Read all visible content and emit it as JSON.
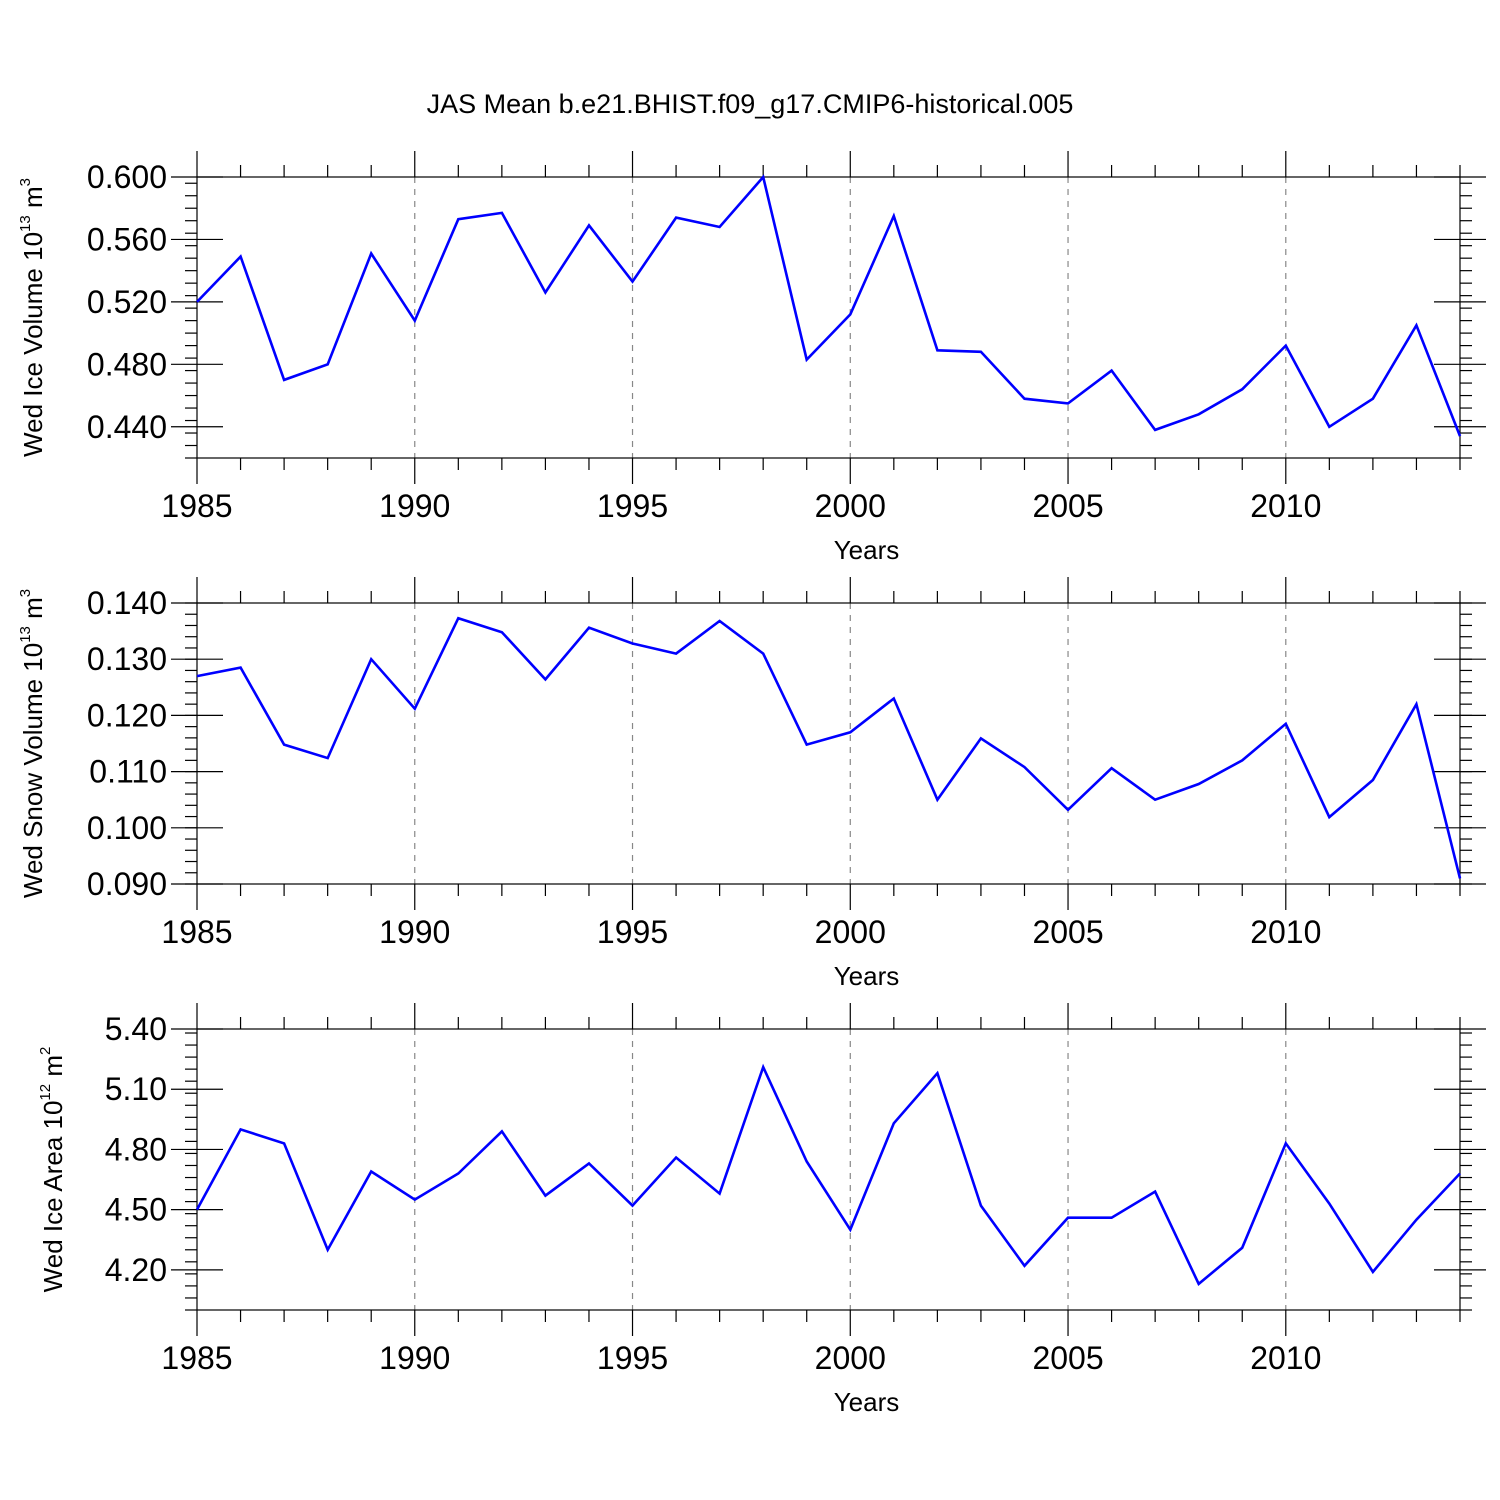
{
  "figure": {
    "title": "JAS Mean b.e21.BHIST.f09_g17.CMIP6-historical.005"
  },
  "chart_data": [
    {
      "type": "line",
      "ylabel": {
        "base": "Wed Ice Volume 10",
        "exp": "13",
        "unit": " m",
        "unit_exp": "3"
      },
      "xlabel": "Years",
      "xlim": [
        1985,
        2014
      ],
      "ylim": [
        0.42,
        0.6
      ],
      "x_ticks": [
        1985,
        1990,
        1995,
        2000,
        2005,
        2010
      ],
      "x_tick_labels": [
        "1985",
        "1990",
        "1995",
        "2000",
        "2005",
        "2010"
      ],
      "y_ticks": [
        0.44,
        0.48,
        0.52,
        0.56,
        0.6
      ],
      "y_tick_labels": [
        "0.440",
        "0.480",
        "0.520",
        "0.560",
        "0.600"
      ],
      "grid": "x-dashed",
      "color": "#0000ff",
      "series": [
        {
          "x": [
            1985,
            1986,
            1987,
            1988,
            1989,
            1990,
            1991,
            1992,
            1993,
            1994,
            1995,
            1996,
            1997,
            1998,
            1999,
            2000,
            2001,
            2002,
            2003,
            2004,
            2005,
            2006,
            2007,
            2008,
            2009,
            2010,
            2011,
            2012,
            2013,
            2014
          ],
          "values": [
            0.52,
            0.549,
            0.47,
            0.48,
            0.551,
            0.508,
            0.573,
            0.577,
            0.526,
            0.569,
            0.533,
            0.574,
            0.568,
            0.6,
            0.483,
            0.512,
            0.575,
            0.489,
            0.488,
            0.458,
            0.455,
            0.476,
            0.438,
            0.448,
            0.464,
            0.492,
            0.44,
            0.458,
            0.505,
            0.434
          ]
        }
      ]
    },
    {
      "type": "line",
      "ylabel": {
        "base": "Wed Snow Volume 10",
        "exp": "13",
        "unit": " m",
        "unit_exp": "3"
      },
      "xlabel": "Years",
      "xlim": [
        1985,
        2014
      ],
      "ylim": [
        0.09,
        0.14
      ],
      "x_ticks": [
        1985,
        1990,
        1995,
        2000,
        2005,
        2010
      ],
      "x_tick_labels": [
        "1985",
        "1990",
        "1995",
        "2000",
        "2005",
        "2010"
      ],
      "y_ticks": [
        0.09,
        0.1,
        0.11,
        0.12,
        0.13,
        0.14
      ],
      "y_tick_labels": [
        "0.090",
        "0.100",
        "0.110",
        "0.120",
        "0.130",
        "0.140"
      ],
      "grid": "x-dashed",
      "color": "#0000ff",
      "series": [
        {
          "x": [
            1985,
            1986,
            1987,
            1988,
            1989,
            1990,
            1991,
            1992,
            1993,
            1994,
            1995,
            1996,
            1997,
            1998,
            1999,
            2000,
            2001,
            2002,
            2003,
            2004,
            2005,
            2006,
            2007,
            2008,
            2009,
            2010,
            2011,
            2012,
            2013,
            2014
          ],
          "values": [
            0.127,
            0.1285,
            0.1148,
            0.1124,
            0.13,
            0.1212,
            0.1373,
            0.1348,
            0.1264,
            0.1356,
            0.1328,
            0.131,
            0.1368,
            0.131,
            0.1148,
            0.117,
            0.123,
            0.105,
            0.1159,
            0.1108,
            0.1032,
            0.1106,
            0.105,
            0.1078,
            0.112,
            0.1185,
            0.1019,
            0.1085,
            0.122,
            0.091
          ]
        }
      ]
    },
    {
      "type": "line",
      "ylabel": {
        "base": "Wed Ice Area 10",
        "exp": "12",
        "unit": " m",
        "unit_exp": "2"
      },
      "xlabel": "Years",
      "xlim": [
        1985,
        2014
      ],
      "ylim": [
        4.0,
        5.4
      ],
      "x_ticks": [
        1985,
        1990,
        1995,
        2000,
        2005,
        2010
      ],
      "x_tick_labels": [
        "1985",
        "1990",
        "1995",
        "2000",
        "2005",
        "2010"
      ],
      "y_ticks": [
        4.2,
        4.5,
        4.8,
        5.1,
        5.4
      ],
      "y_tick_labels": [
        "4.20",
        "4.50",
        "4.80",
        "5.10",
        "5.40"
      ],
      "grid": "x-dashed",
      "color": "#0000ff",
      "series": [
        {
          "x": [
            1985,
            1986,
            1987,
            1988,
            1989,
            1990,
            1991,
            1992,
            1993,
            1994,
            1995,
            1996,
            1997,
            1998,
            1999,
            2000,
            2001,
            2002,
            2003,
            2004,
            2005,
            2006,
            2007,
            2008,
            2009,
            2010,
            2011,
            2012,
            2013,
            2014
          ],
          "values": [
            4.5,
            4.9,
            4.83,
            4.3,
            4.69,
            4.55,
            4.68,
            4.89,
            4.57,
            4.73,
            4.52,
            4.76,
            4.58,
            5.21,
            4.74,
            4.4,
            4.93,
            5.18,
            4.52,
            4.22,
            4.46,
            4.46,
            4.59,
            4.13,
            4.31,
            4.83,
            4.53,
            4.19,
            4.45,
            4.68
          ]
        }
      ]
    }
  ]
}
